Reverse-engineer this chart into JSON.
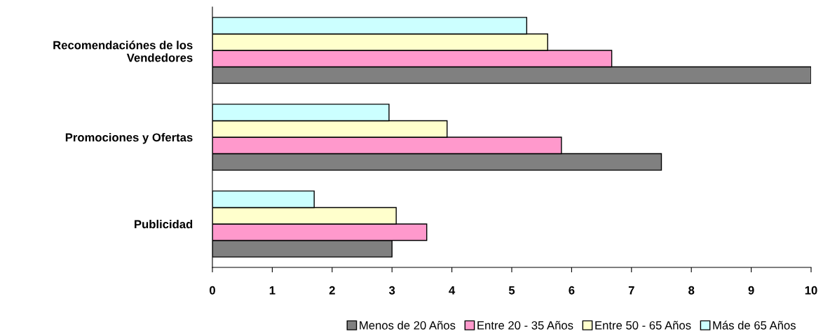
{
  "chart_data": {
    "type": "bar",
    "orientation": "horizontal",
    "categories": [
      "Recomendaciónes de los Vendedores",
      "Promociones y Ofertas",
      "Publicidad"
    ],
    "series": [
      {
        "name": "Menos de 20 Años",
        "color": "#808080",
        "values": [
          10,
          7.5,
          3.0
        ]
      },
      {
        "name": "Entre 20 - 35 Años",
        "color": "#ff99cc",
        "values": [
          6.67,
          5.83,
          3.58
        ]
      },
      {
        "name": "Entre 50 - 65 Años",
        "color": "#ffffcc",
        "values": [
          5.6,
          3.92,
          3.07
        ]
      },
      {
        "name": "Más de 65 Años",
        "color": "#ccffff",
        "values": [
          5.25,
          2.95,
          1.7
        ]
      }
    ],
    "xlim": [
      0,
      10
    ],
    "xticks": [
      0,
      1,
      2,
      3,
      4,
      5,
      6,
      7,
      8,
      9,
      10
    ],
    "grid": false,
    "legend": "bottom"
  }
}
